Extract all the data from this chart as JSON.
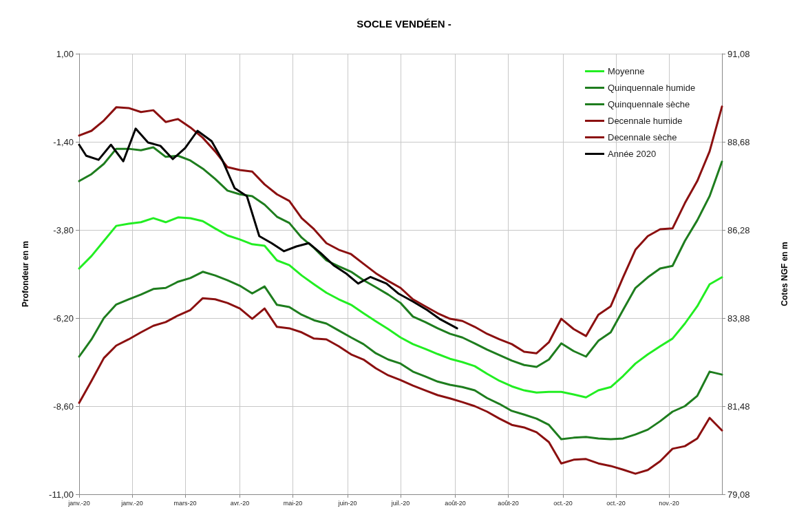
{
  "chart_data": {
    "type": "line",
    "title": "SOCLE VENDÉEN -",
    "ylabel": "Profondeur en m",
    "y2label": "Cotes NGF en m",
    "x": [
      "2020-01-01",
      "2020-01-08",
      "2020-01-15",
      "2020-01-22",
      "2020-01-29",
      "2020-02-05",
      "2020-02-12",
      "2020-02-19",
      "2020-02-26",
      "2020-03-04",
      "2020-03-11",
      "2020-03-18",
      "2020-03-25",
      "2020-04-01",
      "2020-04-08",
      "2020-04-15",
      "2020-04-22",
      "2020-04-29",
      "2020-05-06",
      "2020-05-13",
      "2020-05-20",
      "2020-05-27",
      "2020-06-03",
      "2020-06-10",
      "2020-06-17",
      "2020-06-24",
      "2020-07-01",
      "2020-07-08",
      "2020-07-15",
      "2020-07-22",
      "2020-07-29",
      "2020-08-05",
      "2020-08-12",
      "2020-08-19",
      "2020-08-26",
      "2020-09-02",
      "2020-09-09",
      "2020-09-16",
      "2020-09-23",
      "2020-09-30",
      "2020-10-07",
      "2020-10-14",
      "2020-10-21",
      "2020-10-28",
      "2020-11-04",
      "2020-11-11",
      "2020-11-18",
      "2020-11-25",
      "2020-12-02",
      "2020-12-09",
      "2020-12-16",
      "2020-12-23",
      "2020-12-30"
    ],
    "xlim": [
      "2020-01-01",
      "2020-12-30"
    ],
    "xticks": [
      {
        "value": "2020-01-01",
        "label": "janv.-20"
      },
      {
        "value": "2020-01-31",
        "label": "janv.-20"
      },
      {
        "value": "2020-03-01",
        "label": "mars-20"
      },
      {
        "value": "2020-04-01",
        "label": "avr.-20"
      },
      {
        "value": "2020-05-01",
        "label": "mai-20"
      },
      {
        "value": "2020-06-01",
        "label": "juin-20"
      },
      {
        "value": "2020-07-01",
        "label": "juil.-20"
      },
      {
        "value": "2020-08-01",
        "label": "août-20"
      },
      {
        "value": "2020-08-31",
        "label": "août-20"
      },
      {
        "value": "2020-10-01",
        "label": "oct.-20"
      },
      {
        "value": "2020-10-31",
        "label": "oct.-20"
      },
      {
        "value": "2020-11-30",
        "label": "nov.-20"
      }
    ],
    "ylim": [
      -11,
      1
    ],
    "yticks": [
      {
        "value": 1,
        "label": "1,00"
      },
      {
        "value": -1.4,
        "label": "-1,40"
      },
      {
        "value": -3.8,
        "label": "-3,80"
      },
      {
        "value": -6.2,
        "label": "-6,20"
      },
      {
        "value": -8.6,
        "label": "-8,60"
      },
      {
        "value": -11,
        "label": "-11,00"
      }
    ],
    "y2lim": [
      79.08,
      91.08
    ],
    "y2ticks": [
      {
        "value": 91.08,
        "label": "91,08"
      },
      {
        "value": 88.68,
        "label": "88,68"
      },
      {
        "value": 86.28,
        "label": "86,28"
      },
      {
        "value": 83.88,
        "label": "83,88"
      },
      {
        "value": 81.48,
        "label": "81,48"
      },
      {
        "value": 79.08,
        "label": "79,08"
      }
    ],
    "grid": true,
    "legend": "top right",
    "marker": "none",
    "line_style": "solid",
    "series": [
      {
        "name": "Moyenne",
        "color": "#22ee22",
        "values": [
          -4.85,
          -4.51,
          -4.1,
          -3.69,
          -3.63,
          -3.59,
          -3.48,
          -3.59,
          -3.46,
          -3.48,
          -3.56,
          -3.76,
          -3.95,
          -4.06,
          -4.19,
          -4.23,
          -4.63,
          -4.76,
          -5.04,
          -5.28,
          -5.51,
          -5.69,
          -5.84,
          -6.07,
          -6.29,
          -6.5,
          -6.73,
          -6.91,
          -7.04,
          -7.18,
          -7.31,
          -7.4,
          -7.51,
          -7.72,
          -7.91,
          -8.06,
          -8.17,
          -8.23,
          -8.21,
          -8.21,
          -8.28,
          -8.36,
          -8.17,
          -8.08,
          -7.78,
          -7.44,
          -7.19,
          -6.97,
          -6.76,
          -6.35,
          -5.88,
          -5.28,
          -5.09
        ]
      },
      {
        "name": "Quinquennale humide",
        "color": "#1e7d1e",
        "values": [
          -2.47,
          -2.28,
          -2.0,
          -1.59,
          -1.59,
          -1.63,
          -1.55,
          -1.81,
          -1.78,
          -1.91,
          -2.13,
          -2.41,
          -2.73,
          -2.83,
          -2.88,
          -3.11,
          -3.44,
          -3.61,
          -4.01,
          -4.29,
          -4.63,
          -4.79,
          -4.94,
          -5.17,
          -5.36,
          -5.56,
          -5.79,
          -6.16,
          -6.31,
          -6.48,
          -6.63,
          -6.73,
          -6.89,
          -7.06,
          -7.21,
          -7.36,
          -7.48,
          -7.53,
          -7.33,
          -6.89,
          -7.1,
          -7.25,
          -6.82,
          -6.59,
          -5.98,
          -5.38,
          -5.09,
          -4.85,
          -4.78,
          -4.1,
          -3.54,
          -2.88,
          -1.94
        ]
      },
      {
        "name": "Quinquennale sèche",
        "color": "#1e7d1e",
        "values": [
          -7.25,
          -6.78,
          -6.2,
          -5.83,
          -5.69,
          -5.56,
          -5.41,
          -5.38,
          -5.21,
          -5.11,
          -4.94,
          -5.04,
          -5.17,
          -5.32,
          -5.53,
          -5.34,
          -5.84,
          -5.9,
          -6.11,
          -6.26,
          -6.35,
          -6.54,
          -6.73,
          -6.91,
          -7.16,
          -7.33,
          -7.44,
          -7.66,
          -7.79,
          -7.93,
          -8.02,
          -8.08,
          -8.17,
          -8.38,
          -8.54,
          -8.73,
          -8.83,
          -8.94,
          -9.11,
          -9.5,
          -9.46,
          -9.44,
          -9.48,
          -9.5,
          -9.48,
          -9.37,
          -9.24,
          -9.01,
          -8.75,
          -8.6,
          -8.32,
          -7.66,
          -7.74
        ]
      },
      {
        "name": "Decennale humide",
        "color": "#8b1010",
        "values": [
          -1.23,
          -1.1,
          -0.82,
          -0.46,
          -0.48,
          -0.59,
          -0.54,
          -0.86,
          -0.78,
          -1.01,
          -1.29,
          -1.66,
          -2.09,
          -2.17,
          -2.21,
          -2.56,
          -2.83,
          -3.01,
          -3.48,
          -3.78,
          -4.16,
          -4.34,
          -4.46,
          -4.72,
          -4.98,
          -5.19,
          -5.38,
          -5.69,
          -5.88,
          -6.07,
          -6.22,
          -6.28,
          -6.44,
          -6.63,
          -6.78,
          -6.91,
          -7.12,
          -7.16,
          -6.86,
          -6.22,
          -6.5,
          -6.69,
          -6.11,
          -5.88,
          -5.09,
          -4.34,
          -3.97,
          -3.78,
          -3.76,
          -3.07,
          -2.47,
          -1.66,
          -0.44
        ]
      },
      {
        "name": "Decennale sèche",
        "color": "#8b1010",
        "values": [
          -8.51,
          -7.91,
          -7.29,
          -6.95,
          -6.78,
          -6.59,
          -6.41,
          -6.31,
          -6.13,
          -5.98,
          -5.66,
          -5.69,
          -5.79,
          -5.94,
          -6.22,
          -5.94,
          -6.44,
          -6.48,
          -6.59,
          -6.76,
          -6.78,
          -6.97,
          -7.19,
          -7.33,
          -7.57,
          -7.76,
          -7.89,
          -8.04,
          -8.17,
          -8.3,
          -8.39,
          -8.49,
          -8.6,
          -8.75,
          -8.94,
          -9.11,
          -9.18,
          -9.31,
          -9.58,
          -10.16,
          -10.06,
          -10.04,
          -10.16,
          -10.23,
          -10.33,
          -10.44,
          -10.34,
          -10.1,
          -9.76,
          -9.69,
          -9.48,
          -8.92,
          -9.26
        ]
      },
      {
        "name": "Année 2020",
        "color": "#000000",
        "x": [
          "2020-01-01",
          "2020-01-05",
          "2020-01-12",
          "2020-01-19",
          "2020-01-26",
          "2020-02-02",
          "2020-02-09",
          "2020-02-16",
          "2020-02-23",
          "2020-03-01",
          "2020-03-08",
          "2020-03-16",
          "2020-03-22",
          "2020-03-29",
          "2020-04-05",
          "2020-04-12",
          "2020-04-19",
          "2020-04-26",
          "2020-05-03",
          "2020-05-10",
          "2020-05-17",
          "2020-05-24",
          "2020-05-31",
          "2020-06-07",
          "2020-06-14",
          "2020-06-23",
          "2020-06-30",
          "2020-07-08",
          "2020-07-16",
          "2020-07-23",
          "2020-08-02"
        ],
        "values": [
          -1.48,
          -1.78,
          -1.89,
          -1.48,
          -1.93,
          -1.04,
          -1.42,
          -1.51,
          -1.87,
          -1.57,
          -1.1,
          -1.38,
          -1.89,
          -2.66,
          -2.88,
          -3.97,
          -4.16,
          -4.38,
          -4.25,
          -4.16,
          -4.44,
          -4.76,
          -4.98,
          -5.26,
          -5.08,
          -5.26,
          -5.54,
          -5.75,
          -5.98,
          -6.22,
          -6.48
        ]
      }
    ]
  }
}
